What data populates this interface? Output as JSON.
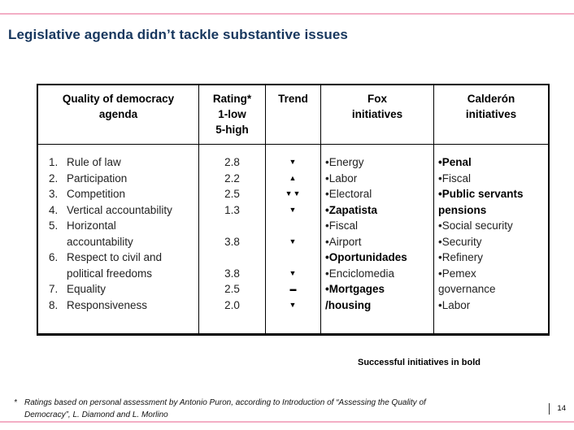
{
  "slide": {
    "title": "Legislative agenda didn’t tackle substantive issues",
    "note": "Successful initiatives in bold",
    "footnote": {
      "marker": "*",
      "line1": "Ratings based on personal assessment by Antonio Puron, according to Introduction of “Assessing the Quality of",
      "line2": "Democracy”, L. Diamond and L. Morlino"
    },
    "page_number": "14",
    "accent_color": "#f3aec5",
    "title_color": "#17375e"
  },
  "table": {
    "headers": {
      "col1": [
        "Quality of democracy",
        "agenda"
      ],
      "col2": [
        "Rating*",
        "1-low",
        "5-high"
      ],
      "col3": [
        "Trend"
      ],
      "col4": [
        "Fox",
        "initiatives"
      ],
      "col5": [
        "Calderón",
        "initiatives"
      ]
    },
    "agenda_lines": [
      {
        "n": "1.",
        "t": "Rule of law"
      },
      {
        "n": "2.",
        "t": "Participation"
      },
      {
        "n": "3.",
        "t": "Competition"
      },
      {
        "n": "4.",
        "t": "Vertical accountability"
      },
      {
        "n": "5.",
        "t": "Horizontal"
      },
      {
        "n": "",
        "t": "accountability"
      },
      {
        "n": "6.",
        "t": "Respect to civil and"
      },
      {
        "n": "",
        "t": "political freedoms"
      },
      {
        "n": "7.",
        "t": "Equality"
      },
      {
        "n": "8.",
        "t": "Responsiveness"
      }
    ],
    "rating_lines": [
      "2.8",
      "2.2",
      "2.5",
      "1.3",
      "",
      "3.8",
      "",
      "3.8",
      "2.5",
      "2.0"
    ],
    "trend_lines": [
      "▼",
      "▲",
      "▼▼",
      "▼",
      "",
      "▼",
      "",
      "▼",
      "▬",
      "▼"
    ],
    "fox_lines": [
      "•Energy",
      "•Labor",
      "•Electoral",
      "•Zapatista",
      "•Fiscal",
      "•Airport",
      "•Oportunidades",
      "•Enciclomedia",
      "•Mortgages",
      "/housing"
    ],
    "calderon_lines": [
      "•Penal",
      "•Fiscal",
      "•Public servants",
      "pensions",
      "•Social security",
      "•Security",
      "•Refinery",
      "•Pemex",
      "governance",
      "•Labor"
    ]
  }
}
